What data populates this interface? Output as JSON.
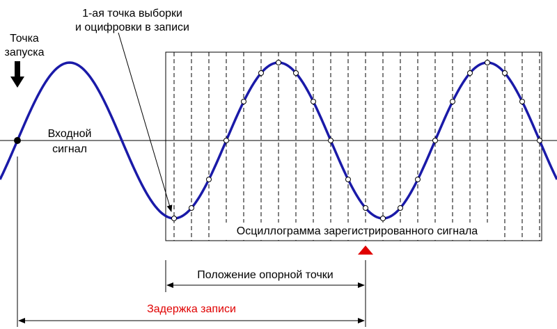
{
  "labels": {
    "first_sample": [
      "1-ая точка выборки",
      "и оцифровки в записи"
    ],
    "trigger_point": [
      "Точка",
      "запуска"
    ],
    "input_signal": [
      "Входной",
      "сигнал"
    ],
    "record_box": "Осциллограмма зарегистрированного сигнала",
    "reference_position": "Положение опорной точки",
    "record_delay": "Задержка записи"
  }
}
